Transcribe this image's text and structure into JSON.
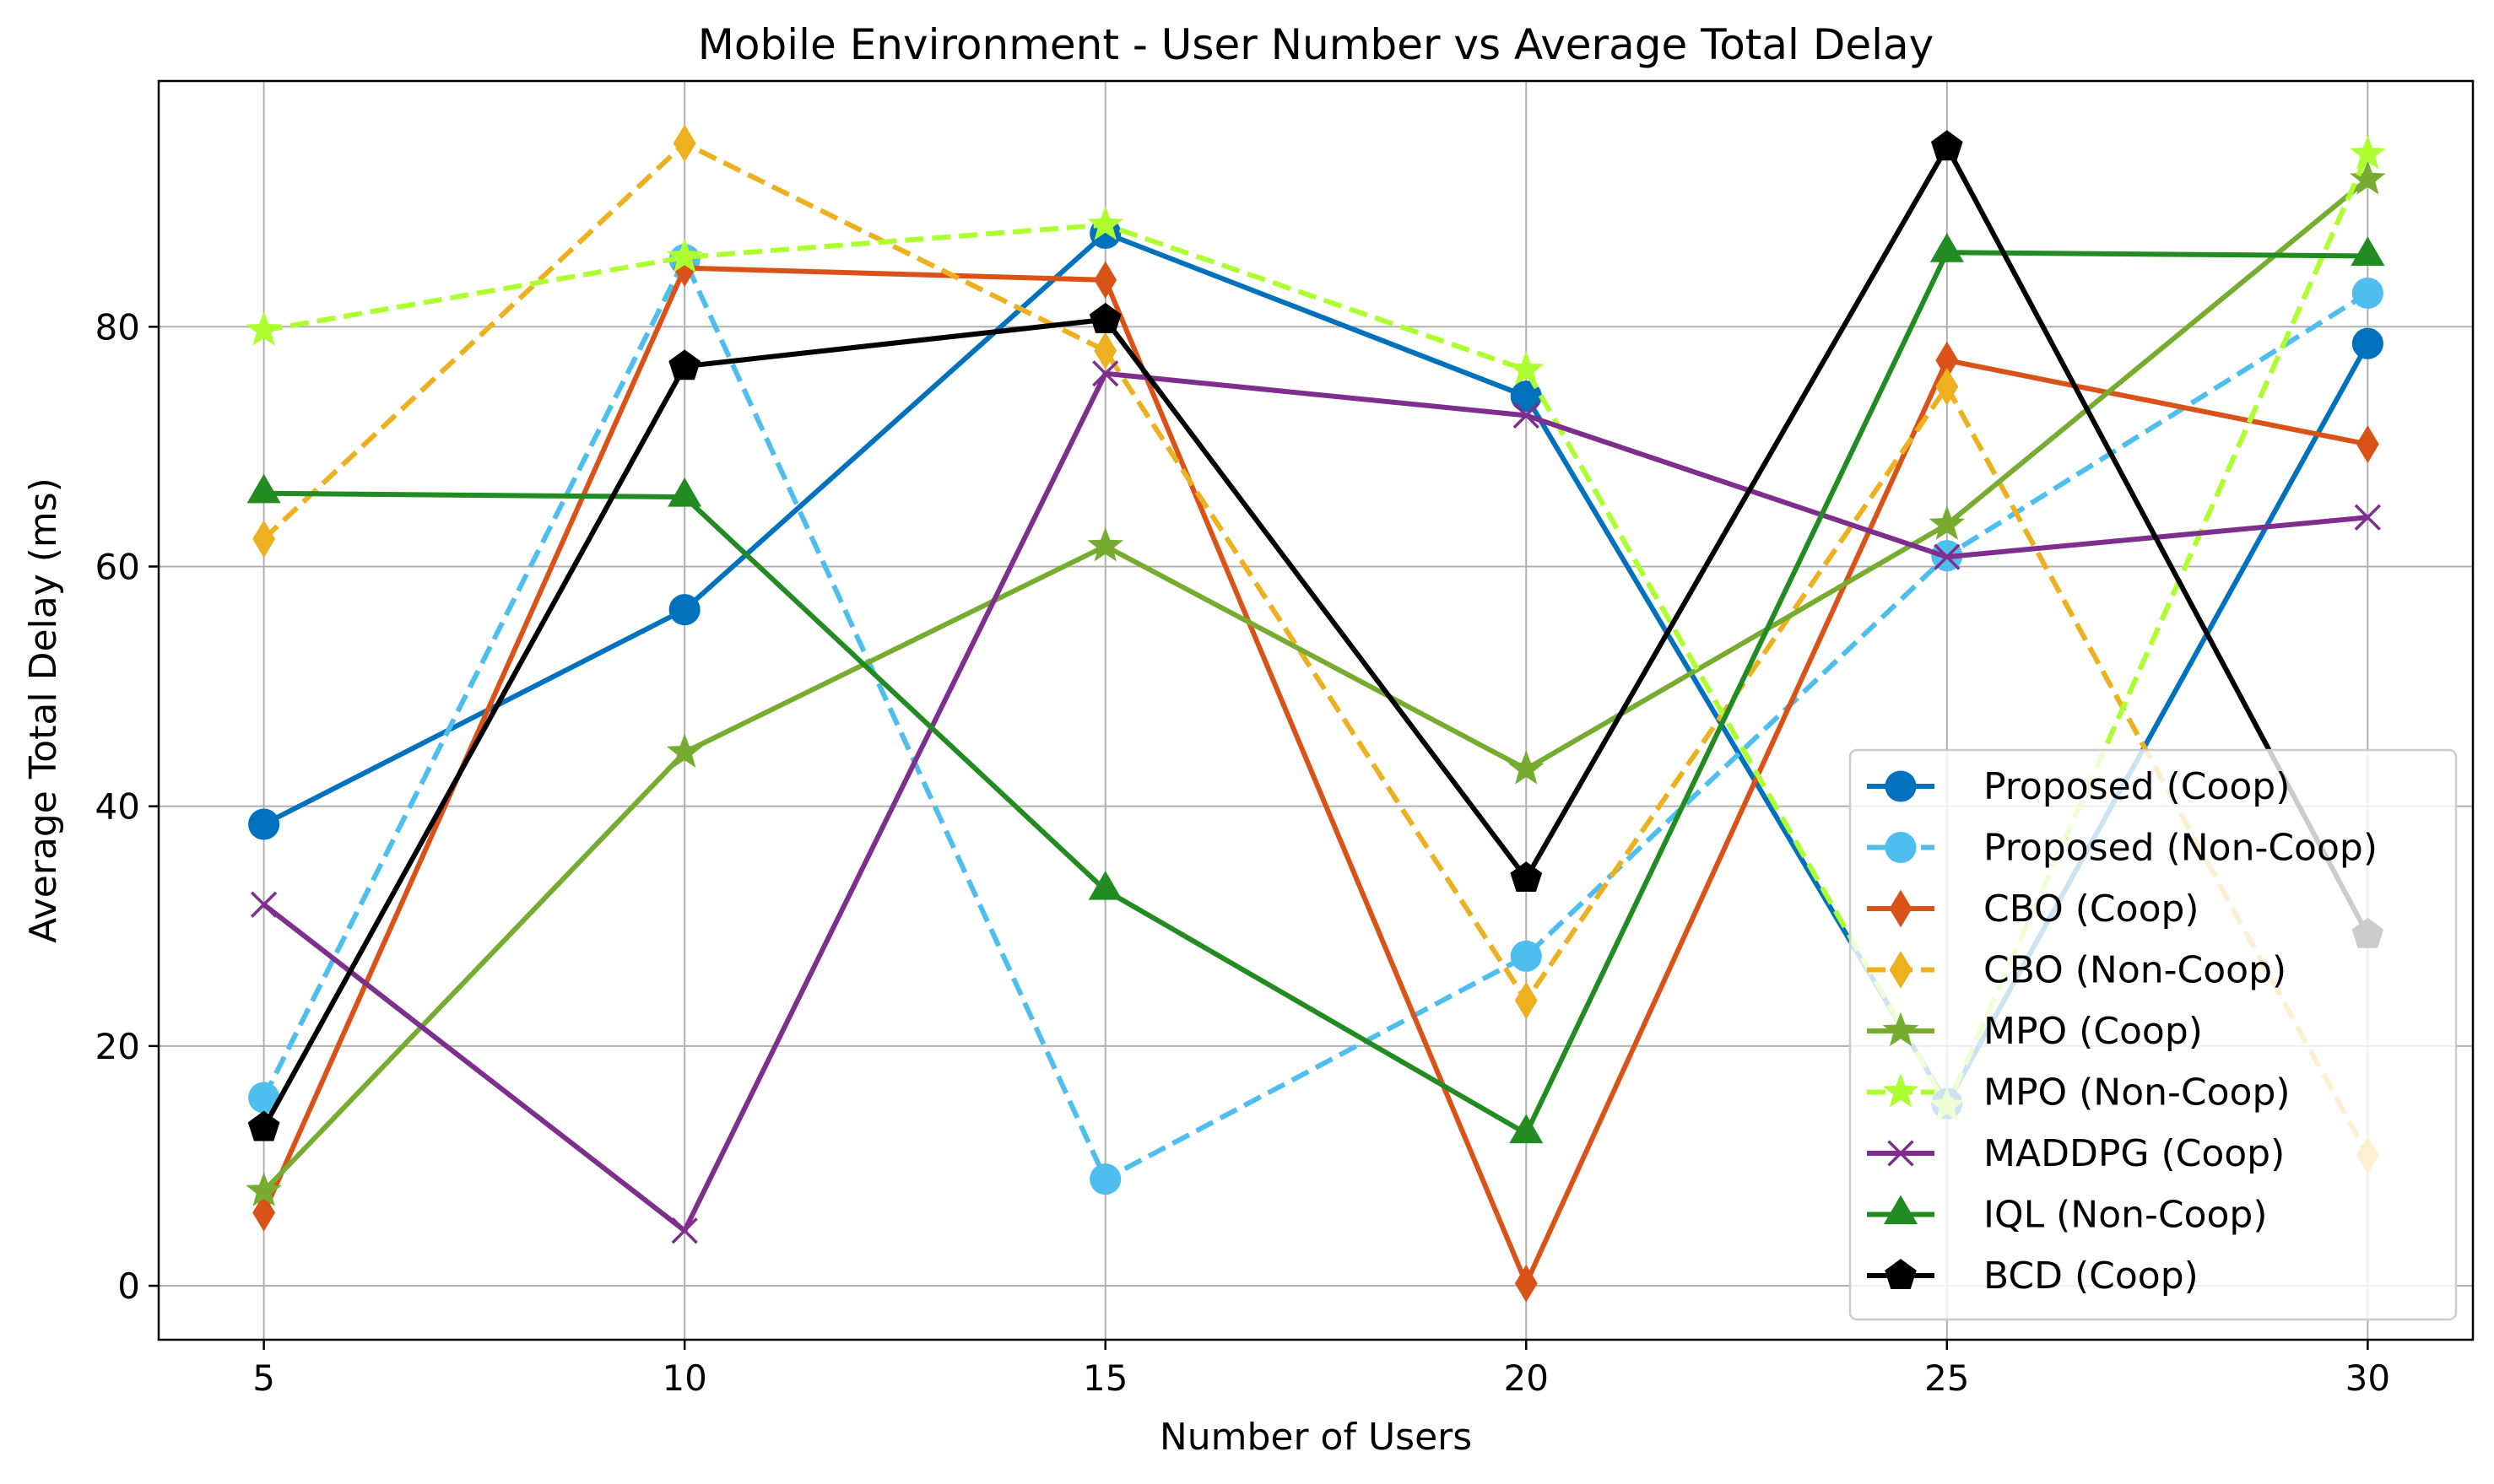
{
  "chart_data": {
    "type": "line",
    "title": "Mobile Environment - User Number vs Average Total Delay",
    "xlabel": "Number of Users",
    "ylabel": "Average Total Delay (ms)",
    "x": [
      5,
      10,
      15,
      20,
      25,
      30
    ],
    "xticks": [
      5,
      10,
      15,
      20,
      25,
      30
    ],
    "yticks": [
      0,
      20,
      40,
      60,
      80
    ],
    "xlim": [
      3.75,
      31.25
    ],
    "ylim": [
      -4.5,
      100.5
    ],
    "grid": true,
    "legend_position": "lower-right",
    "series": [
      {
        "name": "Proposed (Coop)",
        "values": [
          38.5,
          56.4,
          87.8,
          74.2,
          15.2,
          78.6
        ],
        "color": "#0072BD",
        "dash": "solid",
        "marker": "circle"
      },
      {
        "name": "Proposed (Non-Coop)",
        "values": [
          15.7,
          85.6,
          8.9,
          27.5,
          60.9,
          82.8
        ],
        "color": "#4DBEEE",
        "dash": "dashed",
        "marker": "circle"
      },
      {
        "name": "CBO (Coop)",
        "values": [
          6.1,
          84.9,
          83.9,
          0.2,
          77.2,
          70.2
        ],
        "color": "#D95319",
        "dash": "solid",
        "marker": "thin-diamond"
      },
      {
        "name": "CBO (Non-Coop)",
        "values": [
          62.3,
          95.3,
          78.0,
          23.8,
          75.0,
          10.9
        ],
        "color": "#EDB120",
        "dash": "dashed",
        "marker": "thin-diamond"
      },
      {
        "name": "MPO (Coop)",
        "values": [
          7.9,
          44.5,
          61.7,
          43.1,
          63.5,
          92.3
        ],
        "color": "#77AC30",
        "dash": "solid",
        "marker": "star"
      },
      {
        "name": "MPO (Non-Coop)",
        "values": [
          79.7,
          85.8,
          88.5,
          76.4,
          15.0,
          94.4
        ],
        "color": "#ADFF2F",
        "dash": "dashed",
        "marker": "star"
      },
      {
        "name": "MADDPG (Coop)",
        "values": [
          31.8,
          4.6,
          76.1,
          72.6,
          60.8,
          64.1
        ],
        "color": "#7E2F8E",
        "dash": "solid",
        "marker": "x"
      },
      {
        "name": "IQL (Non-Coop)",
        "values": [
          66.1,
          65.8,
          33.0,
          12.7,
          86.2,
          85.9
        ],
        "color": "#228B22",
        "dash": "solid",
        "marker": "triangle"
      },
      {
        "name": "BCD (Coop)",
        "values": [
          13.2,
          76.7,
          80.6,
          34.0,
          95.0,
          29.3
        ],
        "color": "#000000",
        "dash": "solid",
        "marker": "pentagon"
      }
    ]
  }
}
